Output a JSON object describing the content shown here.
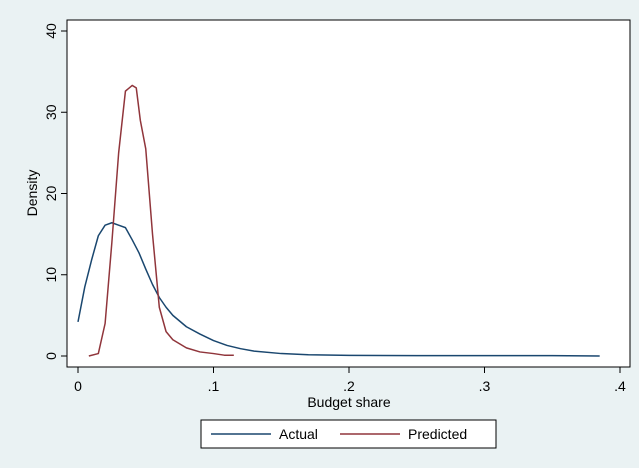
{
  "chart_data": {
    "type": "line",
    "title": "",
    "xlabel": "Budget share",
    "ylabel": "Density",
    "xlim": [
      0,
      0.4
    ],
    "ylim": [
      0,
      40
    ],
    "x_ticks": [
      0,
      0.1,
      0.2,
      0.3,
      0.4
    ],
    "x_tick_labels": [
      "0",
      ".1",
      ".2",
      ".3",
      ".4"
    ],
    "y_ticks": [
      0,
      10,
      20,
      30,
      40
    ],
    "y_tick_labels": [
      "0",
      "10",
      "20",
      "30",
      "40"
    ],
    "grid": false,
    "legend_position": "bottom",
    "series": [
      {
        "name": "Actual",
        "color": "#1a476f",
        "x": [
          0.0,
          0.005,
          0.01,
          0.015,
          0.02,
          0.025,
          0.03,
          0.035,
          0.04,
          0.045,
          0.05,
          0.055,
          0.06,
          0.065,
          0.07,
          0.08,
          0.09,
          0.1,
          0.11,
          0.12,
          0.13,
          0.15,
          0.17,
          0.2,
          0.25,
          0.3,
          0.35,
          0.385
        ],
        "y": [
          4.2,
          8.5,
          11.8,
          14.8,
          16.1,
          16.4,
          16.1,
          15.8,
          14.3,
          12.7,
          10.7,
          8.8,
          7.2,
          6.0,
          5.0,
          3.6,
          2.7,
          1.9,
          1.3,
          0.9,
          0.6,
          0.3,
          0.15,
          0.08,
          0.05,
          0.05,
          0.04,
          0.0
        ]
      },
      {
        "name": "Predicted",
        "color": "#90353b",
        "x": [
          0.008,
          0.015,
          0.02,
          0.025,
          0.03,
          0.035,
          0.04,
          0.043,
          0.046,
          0.05,
          0.055,
          0.06,
          0.065,
          0.07,
          0.08,
          0.09,
          0.1,
          0.108,
          0.115
        ],
        "y": [
          0.0,
          0.3,
          4.0,
          14.0,
          25.0,
          32.6,
          33.3,
          33.0,
          29.0,
          25.5,
          15.0,
          6.0,
          3.0,
          2.0,
          1.0,
          0.5,
          0.3,
          0.1,
          0.1
        ]
      }
    ]
  }
}
